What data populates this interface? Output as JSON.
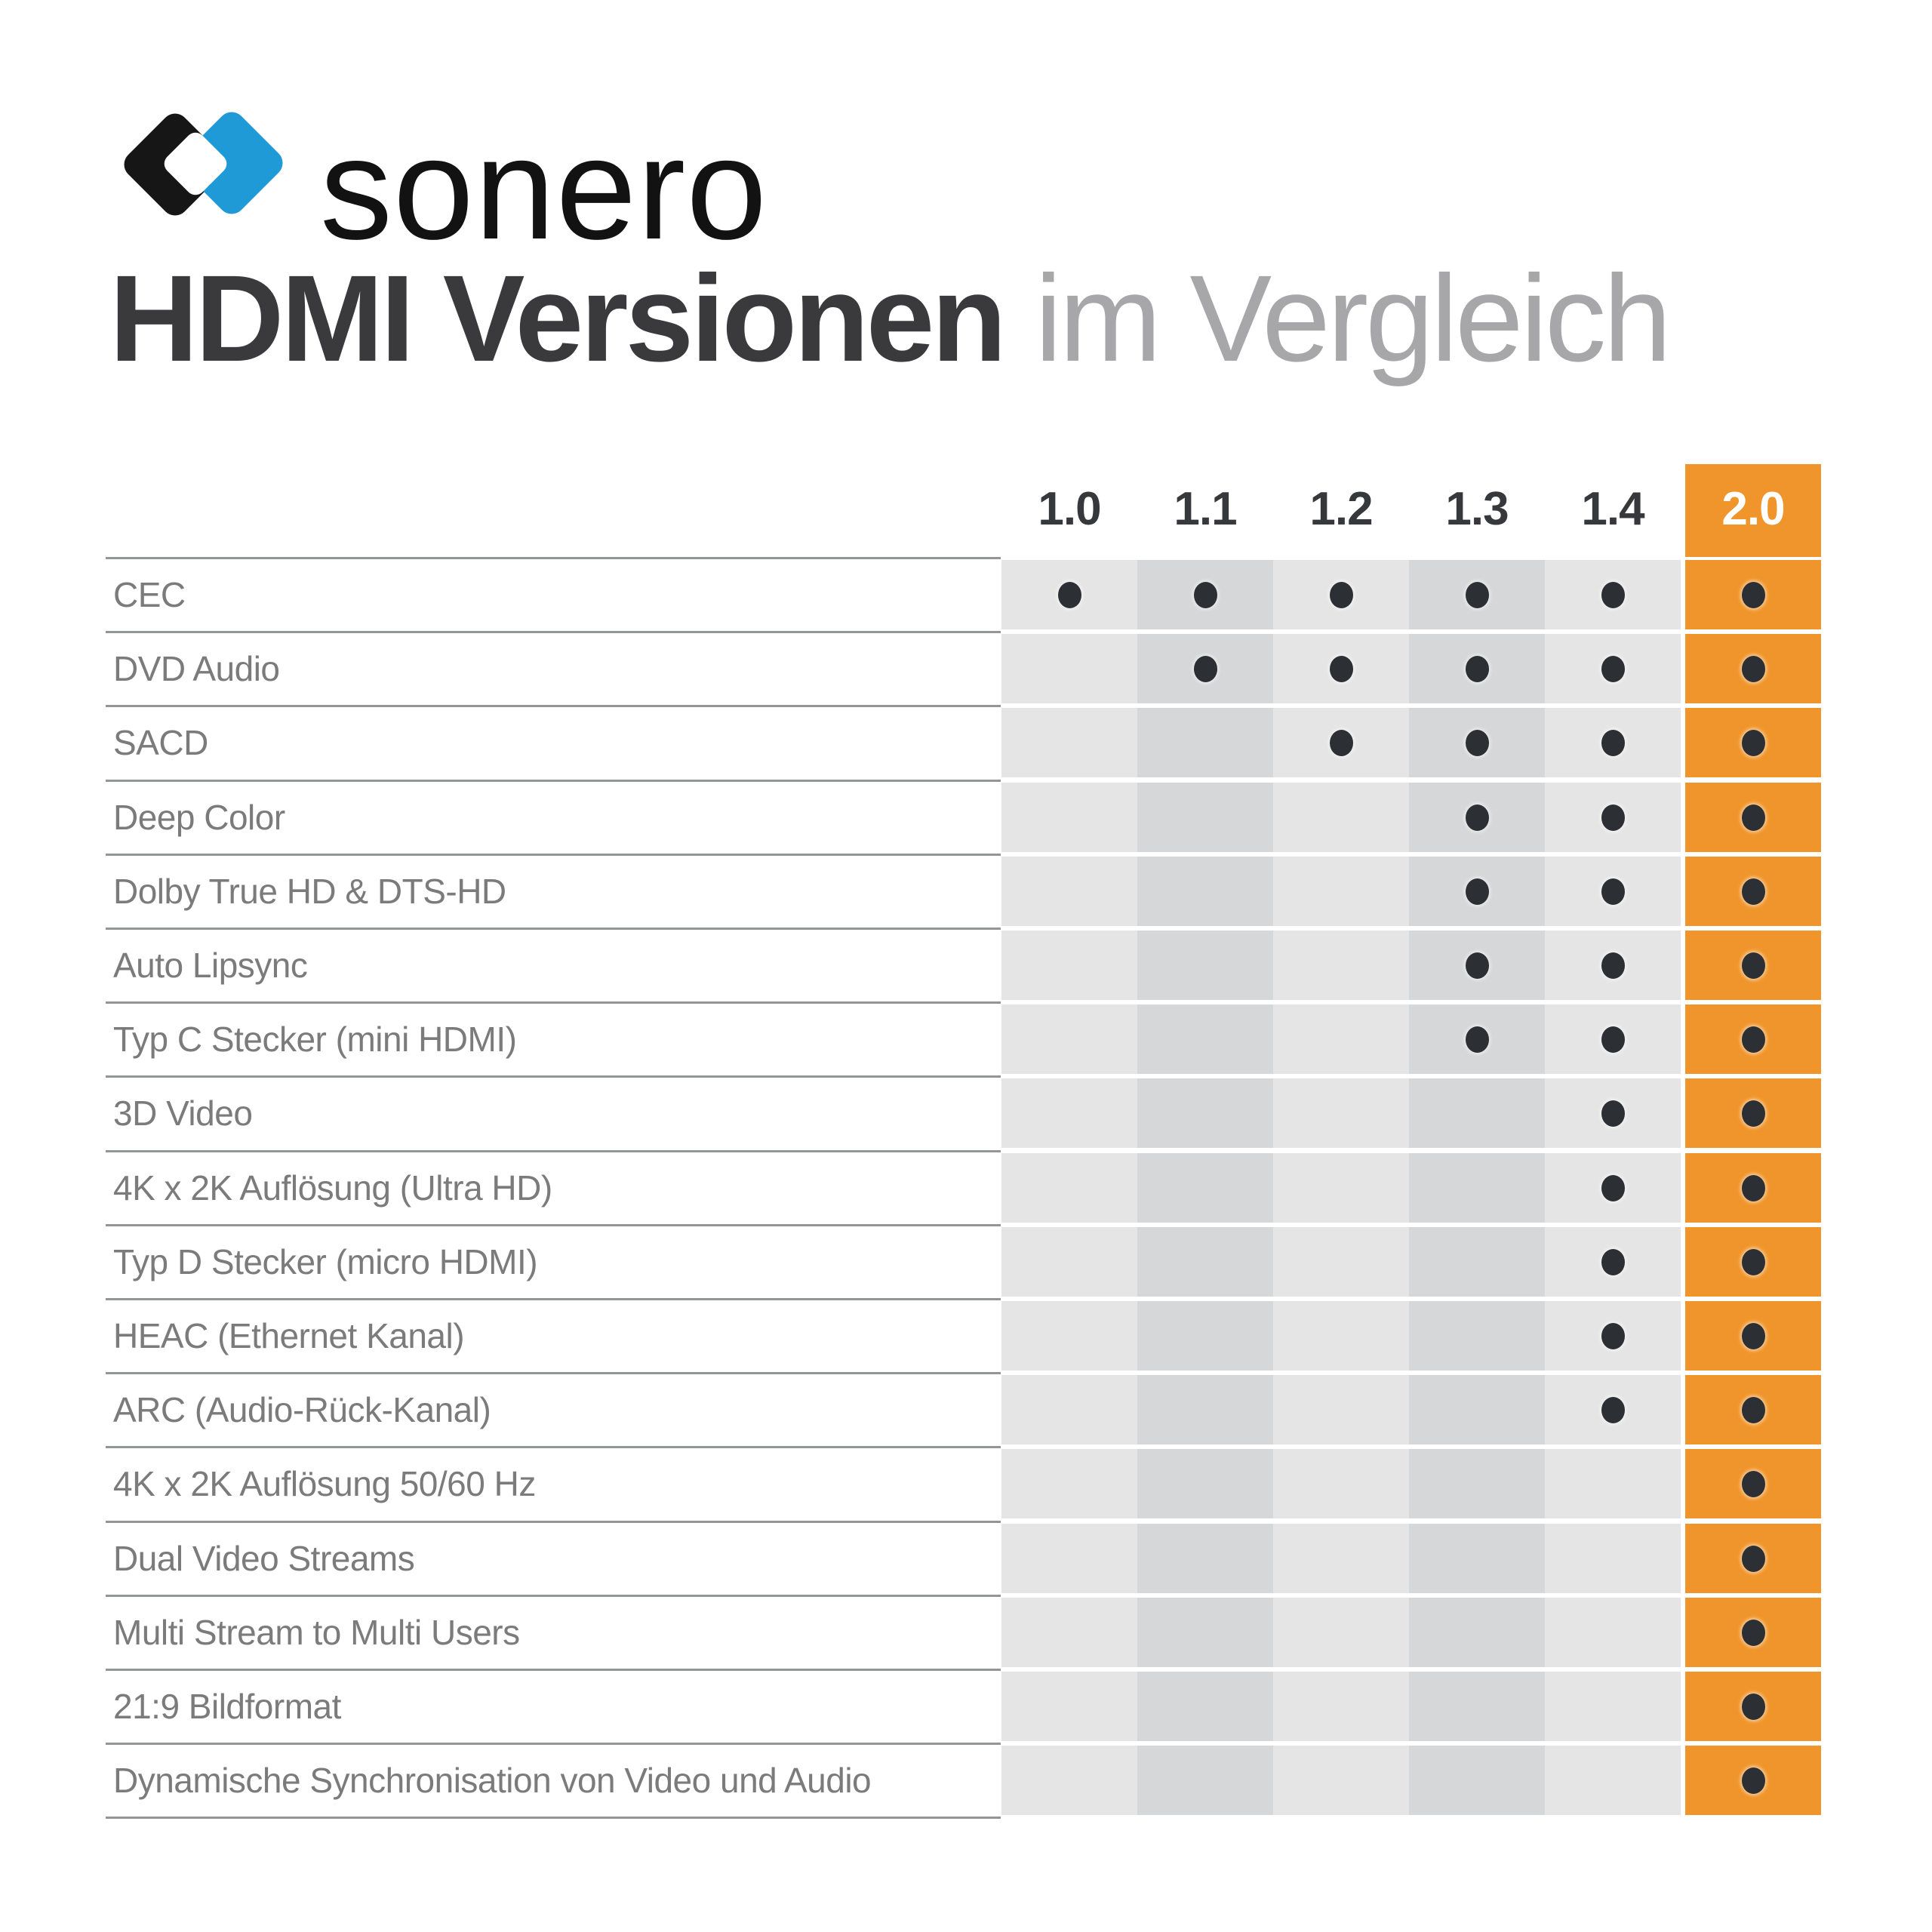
{
  "brand": {
    "name": "sonero"
  },
  "title": {
    "emphasis": "HDMI Versionen",
    "secondary": " im Vergleich"
  },
  "colors": {
    "accent_orange": "#F0952B",
    "column_light": "#E5E5E6",
    "column_dark": "#D6D7D8",
    "dot": "#2C2F33",
    "label_text": "#7B7B7B",
    "separator_line": "#949597",
    "title_primary": "#3A3A3C",
    "title_secondary": "#A7A7A9",
    "logo_black": "#161616",
    "logo_blue": "#1F9AD7",
    "header_text": "#36383B",
    "header_text_highlight": "#FFFFFF"
  },
  "chart_data": {
    "type": "table",
    "title": "HDMI Versionen im Vergleich",
    "columns": [
      "1.0",
      "1.1",
      "1.2",
      "1.3",
      "1.4",
      "2.0"
    ],
    "highlight_column": "2.0",
    "legend_position": "none",
    "rows": [
      {
        "feature": "CEC",
        "supported_in": [
          1,
          1,
          1,
          1,
          1,
          1
        ]
      },
      {
        "feature": "DVD Audio",
        "supported_in": [
          0,
          1,
          1,
          1,
          1,
          1
        ]
      },
      {
        "feature": "SACD",
        "supported_in": [
          0,
          0,
          1,
          1,
          1,
          1
        ]
      },
      {
        "feature": "Deep Color",
        "supported_in": [
          0,
          0,
          0,
          1,
          1,
          1
        ]
      },
      {
        "feature": "Dolby True HD & DTS-HD",
        "supported_in": [
          0,
          0,
          0,
          1,
          1,
          1
        ]
      },
      {
        "feature": "Auto Lipsync",
        "supported_in": [
          0,
          0,
          0,
          1,
          1,
          1
        ]
      },
      {
        "feature": "Typ C Stecker (mini HDMI)",
        "supported_in": [
          0,
          0,
          0,
          1,
          1,
          1
        ]
      },
      {
        "feature": "3D Video",
        "supported_in": [
          0,
          0,
          0,
          0,
          1,
          1
        ]
      },
      {
        "feature": "4K x 2K Auflösung (Ultra HD)",
        "supported_in": [
          0,
          0,
          0,
          0,
          1,
          1
        ]
      },
      {
        "feature": "Typ D Stecker (micro HDMI)",
        "supported_in": [
          0,
          0,
          0,
          0,
          1,
          1
        ]
      },
      {
        "feature": "HEAC (Ethernet Kanal)",
        "supported_in": [
          0,
          0,
          0,
          0,
          1,
          1
        ]
      },
      {
        "feature": "ARC (Audio-Rück-Kanal)",
        "supported_in": [
          0,
          0,
          0,
          0,
          1,
          1
        ]
      },
      {
        "feature": "4K x 2K Auflösung 50/60 Hz",
        "supported_in": [
          0,
          0,
          0,
          0,
          0,
          1
        ]
      },
      {
        "feature": "Dual Video Streams",
        "supported_in": [
          0,
          0,
          0,
          0,
          0,
          1
        ]
      },
      {
        "feature": "Multi Stream to Multi Users",
        "supported_in": [
          0,
          0,
          0,
          0,
          0,
          1
        ]
      },
      {
        "feature": "21:9 Bildformat",
        "supported_in": [
          0,
          0,
          0,
          0,
          0,
          1
        ]
      },
      {
        "feature": "Dynamische Synchronisation von Video und Audio",
        "supported_in": [
          0,
          0,
          0,
          0,
          0,
          1
        ]
      }
    ]
  }
}
